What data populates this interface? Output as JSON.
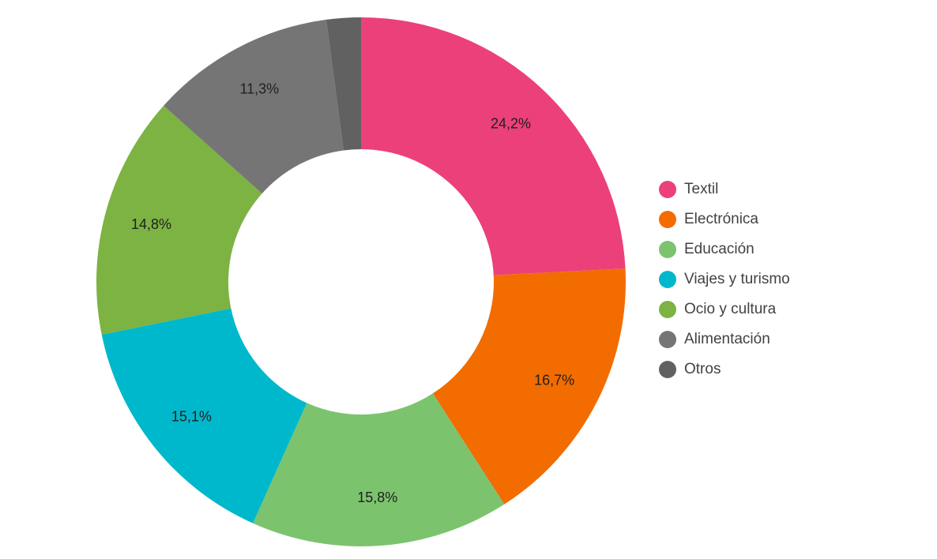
{
  "chart_data": {
    "type": "donut",
    "categories": [
      "Textil",
      "Electrónica",
      "Educación",
      "Viajes y turismo",
      "Ocio y cultura",
      "Alimentación",
      "Otros"
    ],
    "values": [
      24.2,
      16.7,
      15.8,
      15.1,
      14.8,
      11.3,
      2.1
    ],
    "value_labels": [
      "24,2%",
      "16,7%",
      "15,8%",
      "15,1%",
      "14,8%",
      "11,3%",
      null
    ],
    "colors": [
      "#ec407a",
      "#f26c00",
      "#7cc36e",
      "#00b8cc",
      "#7cb342",
      "#757575",
      "#616161"
    ],
    "legend": "right"
  }
}
